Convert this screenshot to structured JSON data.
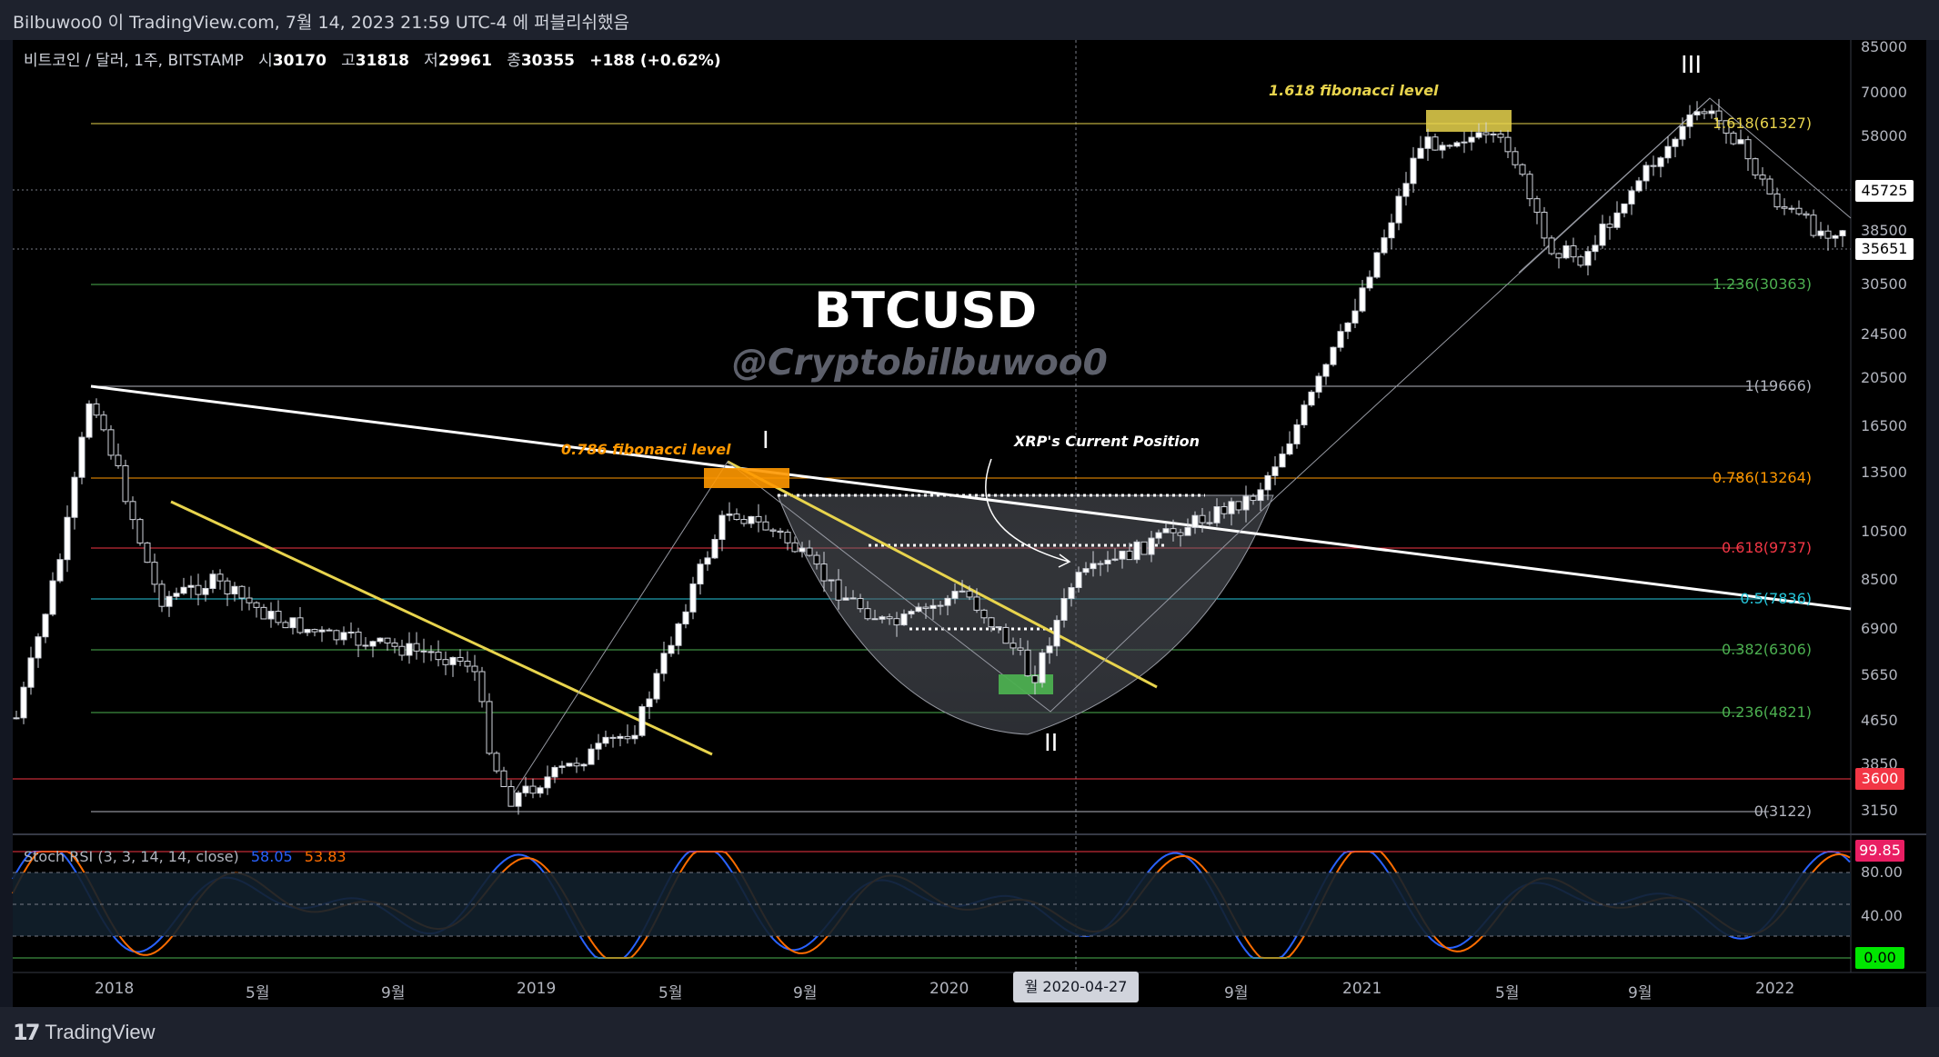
{
  "header": {
    "publish_line": "Bilbuwoo0 이 TradingView.com, 7월 14, 2023 21:59 UTC-4 에 퍼블리쉬했음"
  },
  "legend": {
    "symbol": "비트코인 / 달러, 1주, BITSTAMP",
    "open_label": "시",
    "open": "30170",
    "high_label": "고",
    "high": "31818",
    "low_label": "저",
    "low": "29961",
    "close_label": "종",
    "close": "30355",
    "change": "+188 (+0.62%)"
  },
  "watermark": {
    "title": "BTCUSD",
    "handle": "@Cryptobilbuwoo0"
  },
  "annotations": {
    "fib_1618_note": "1.618 fibonacci level",
    "fib_0786_note": "0.786 fibonacci level",
    "xrp_note": "XRP's Current Position",
    "wave_1": "I",
    "wave_2": "II",
    "wave_3": "III"
  },
  "fib_levels": [
    {
      "label": "1.618(61327)",
      "color": "#e8d44d"
    },
    {
      "label": "1.236(30363)",
      "color": "#4caf50"
    },
    {
      "label": "1(19666)",
      "color": "#b2b5be"
    },
    {
      "label": "0.786(13264)",
      "color": "#ff9800"
    },
    {
      "label": "0.618(9737)",
      "color": "#f23645"
    },
    {
      "label": "0.5(7836)",
      "color": "#26c6da"
    },
    {
      "label": "0.382(6306)",
      "color": "#4caf50"
    },
    {
      "label": "0.236(4821)",
      "color": "#4caf50"
    },
    {
      "label": "0(3122)",
      "color": "#b2b5be"
    }
  ],
  "price_axis": [
    "85000",
    "70000",
    "58000",
    "38500",
    "30500",
    "24500",
    "20500",
    "16500",
    "13500",
    "10500",
    "8500",
    "6900",
    "5650",
    "4650",
    "3850",
    "3150"
  ],
  "price_tags": {
    "tag_45725": "45725",
    "tag_35651": "35651",
    "tag_3600": "3600"
  },
  "time_axis": [
    "2018",
    "5월",
    "9월",
    "2019",
    "5월",
    "9월",
    "2020",
    "9월",
    "2021",
    "5월",
    "9월",
    "2022"
  ],
  "crosshair_date": "월 2020-04-27",
  "stoch_rsi": {
    "title": "Stoch RSI (3, 3, 14, 14, close)",
    "k_value": "58.05",
    "d_value": "53.83",
    "axis": [
      "80.00",
      "40.00"
    ],
    "tag_high": "99.85",
    "tag_low": "0.00",
    "k_color": "#2962ff",
    "d_color": "#ff6d00"
  },
  "footer": {
    "brand": "TradingView"
  }
}
